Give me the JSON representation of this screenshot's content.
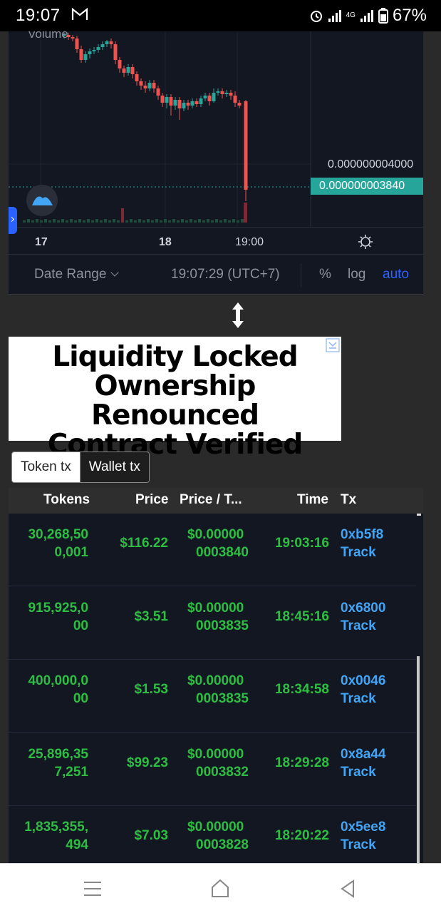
{
  "status_bar": {
    "time": "19:07",
    "network": "4G",
    "battery": "67%"
  },
  "chart": {
    "volume_label": "Volume",
    "price_grid_label": "0.000000004000",
    "price_current": "0.000000003840",
    "time_labels": [
      "17",
      "18",
      "19:00"
    ],
    "toolbar": {
      "date_range": "Date Range",
      "time": "19:07:29 (UTC+7)",
      "percent": "%",
      "log": "log",
      "auto": "auto"
    },
    "colors": {
      "up": "#26a69a",
      "down": "#ef5350",
      "accent": "#2962ff"
    }
  },
  "ad": {
    "lines": [
      "Liquidity Locked",
      "Ownership Renounced",
      "Contract Verified"
    ]
  },
  "tabs": [
    {
      "label": "Token tx",
      "active": true
    },
    {
      "label": "Wallet tx",
      "active": false
    }
  ],
  "table": {
    "headers": [
      "Tokens",
      "Price",
      "Price / T...",
      "Time",
      "Tx"
    ],
    "rows": [
      {
        "tokens": [
          "30,268,50",
          "0,001"
        ],
        "price": "$116.22",
        "price_t": [
          "$0.00000",
          "0003840"
        ],
        "time": "19:03:16",
        "tx": "0xb5f8",
        "track": "Track"
      },
      {
        "tokens": [
          "915,925,0",
          "00"
        ],
        "price": "$3.51",
        "price_t": [
          "$0.00000",
          "0003835"
        ],
        "time": "18:45:16",
        "tx": "0x6800",
        "track": "Track"
      },
      {
        "tokens": [
          "400,000,0",
          "00"
        ],
        "price": "$1.53",
        "price_t": [
          "$0.00000",
          "0003835"
        ],
        "time": "18:34:58",
        "tx": "0x0046",
        "track": "Track"
      },
      {
        "tokens": [
          "25,896,35",
          "7,251"
        ],
        "price": "$99.23",
        "price_t": [
          "$0.00000",
          "0003832"
        ],
        "time": "18:29:28",
        "tx": "0x8a44",
        "track": "Track"
      },
      {
        "tokens": [
          "1,835,355,",
          "494"
        ],
        "price": "$7.03",
        "price_t": [
          "$0.00000",
          "0003828"
        ],
        "time": "18:20:22",
        "tx": "0x5ee8",
        "track": "Track"
      }
    ]
  },
  "nav": {
    "icons": [
      "menu-icon",
      "home-icon",
      "back-icon"
    ]
  }
}
